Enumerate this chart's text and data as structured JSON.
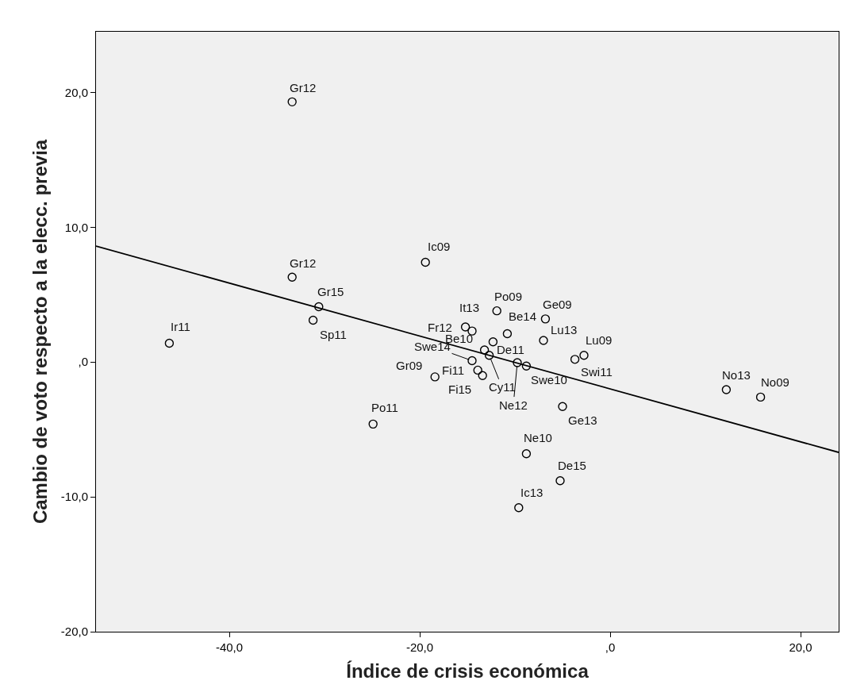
{
  "chart_data": {
    "type": "scatter",
    "xlabel": "Índice de crisis económica",
    "ylabel": "Cambio de voto respecto a la elecc. previa",
    "xlim": [
      -54,
      24
    ],
    "ylim": [
      -20,
      24.5
    ],
    "xticks": [
      {
        "value": -40,
        "label": "-40,0"
      },
      {
        "value": -20,
        "label": "-20,0"
      },
      {
        "value": 0,
        "label": ",0"
      },
      {
        "value": 20,
        "label": "20,0"
      }
    ],
    "yticks": [
      {
        "value": -20,
        "label": "-20,0"
      },
      {
        "value": -10,
        "label": "-10,0"
      },
      {
        "value": 0,
        "label": ",0"
      },
      {
        "value": 10,
        "label": "10,0"
      },
      {
        "value": 20,
        "label": "20,0"
      }
    ],
    "grid": false,
    "series": [
      {
        "marker": "circle",
        "color": "#000000",
        "x": [
          -33.4,
          -33.4,
          -19.4,
          -30.6,
          -31.2,
          -46.3,
          -24.9,
          -18.4,
          -11.9,
          -14.5,
          -15.2,
          -10.8,
          -6.8,
          -7.0,
          -2.75,
          -3.7,
          -14.5,
          -13.2,
          -12.3,
          -12.7,
          -9.75,
          -8.8,
          -13.9,
          -13.4,
          -5.0,
          -8.8,
          -5.25,
          -9.6,
          12.2,
          15.8
        ],
        "values": [
          19.3,
          6.3,
          7.4,
          4.1,
          3.1,
          1.4,
          -4.6,
          -1.1,
          3.8,
          2.3,
          2.6,
          2.1,
          3.2,
          1.6,
          0.5,
          0.2,
          0.1,
          0.9,
          1.5,
          0.5,
          -0.05,
          -0.3,
          -0.6,
          -1.0,
          -3.3,
          -6.8,
          -8.8,
          -10.8,
          -2.05,
          -2.6
        ]
      },
      {
        "type": "line",
        "marker": "none",
        "line_style": "solid",
        "color": "#000000",
        "x": [
          -54,
          24
        ],
        "values": [
          8.6,
          -6.7
        ]
      }
    ],
    "annotations": [
      {
        "text": "Gr12",
        "x": -33.4,
        "y": 19.3
      },
      {
        "text": "Gr12",
        "x": -33.4,
        "y": 6.3
      },
      {
        "text": "Ic09",
        "x": -19.4,
        "y": 7.4
      },
      {
        "text": "Gr15",
        "x": -30.6,
        "y": 4.1
      },
      {
        "text": "Sp11",
        "x": -31.2,
        "y": 3.1
      },
      {
        "text": "Ir11",
        "x": -46.3,
        "y": 1.4
      },
      {
        "text": "Po11",
        "x": -24.9,
        "y": -4.6
      },
      {
        "text": "Gr09",
        "x": -18.4,
        "y": -1.1
      },
      {
        "text": "Po09",
        "x": -11.9,
        "y": 3.8
      },
      {
        "text": "It13",
        "x": -14.5,
        "y": 2.3
      },
      {
        "text": "Fr12",
        "x": -15.2,
        "y": 2.6
      },
      {
        "text": "Be14",
        "x": -10.8,
        "y": 2.1
      },
      {
        "text": "Ge09",
        "x": -6.8,
        "y": 3.2
      },
      {
        "text": "Lu13",
        "x": -7.0,
        "y": 1.6
      },
      {
        "text": "Lu09",
        "x": -2.75,
        "y": 0.5
      },
      {
        "text": "Swi11",
        "x": -3.7,
        "y": 0.2
      },
      {
        "text": "Swe14",
        "x": -14.5,
        "y": 0.1
      },
      {
        "text": "Be10",
        "x": -13.2,
        "y": 0.9
      },
      {
        "text": "De11",
        "x": -12.3,
        "y": 1.5
      },
      {
        "text": "Cy11",
        "x": -12.7,
        "y": 0.5
      },
      {
        "text": "Ne12",
        "x": -9.75,
        "y": -0.05
      },
      {
        "text": "Swe10",
        "x": -8.8,
        "y": -0.3
      },
      {
        "text": "Fi11",
        "x": -13.9,
        "y": -0.6
      },
      {
        "text": "Fi15",
        "x": -13.4,
        "y": -1.0
      },
      {
        "text": "Ge13",
        "x": -5.0,
        "y": -3.3
      },
      {
        "text": "Ne10",
        "x": -8.8,
        "y": -6.8
      },
      {
        "text": "De15",
        "x": -5.25,
        "y": -8.8
      },
      {
        "text": "Ic13",
        "x": -9.6,
        "y": -10.8
      },
      {
        "text": "No13",
        "x": 12.2,
        "y": -2.05
      },
      {
        "text": "No09",
        "x": 15.8,
        "y": -2.6
      }
    ]
  }
}
